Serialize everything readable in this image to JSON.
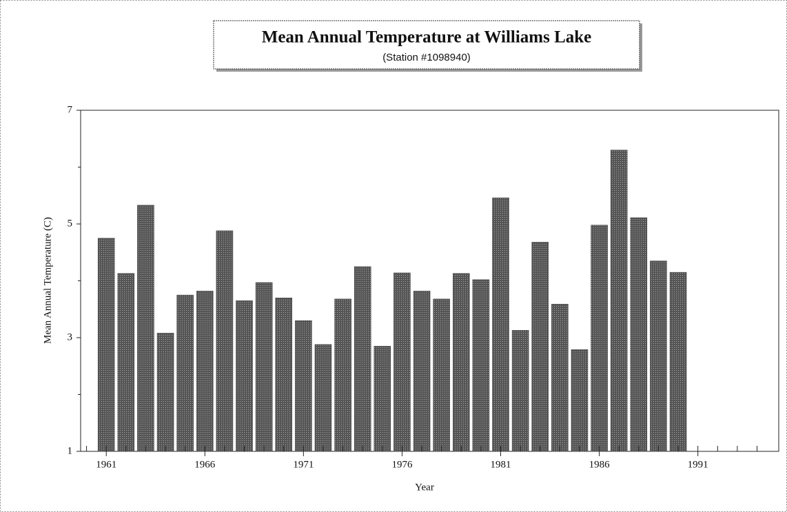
{
  "chart_data": {
    "type": "bar",
    "title": "Mean Annual Temperature at Williams Lake",
    "subtitle": "(Station #1098940)",
    "x_label": "Year",
    "y_label": "Mean Annual Temperature (C)",
    "x": [
      1961,
      1962,
      1963,
      1964,
      1965,
      1966,
      1967,
      1968,
      1969,
      1970,
      1971,
      1972,
      1973,
      1974,
      1975,
      1976,
      1977,
      1978,
      1979,
      1980,
      1981,
      1982,
      1983,
      1984,
      1985,
      1986,
      1987,
      1988,
      1989,
      1990
    ],
    "values": [
      4.75,
      4.13,
      5.33,
      3.08,
      3.75,
      3.82,
      4.88,
      3.65,
      3.97,
      3.7,
      3.3,
      2.88,
      3.68,
      4.25,
      2.85,
      4.14,
      3.82,
      3.68,
      4.13,
      4.02,
      5.46,
      3.13,
      4.68,
      3.59,
      2.79,
      4.98,
      6.3,
      5.11,
      4.35,
      4.15
    ],
    "color": "#3a3a3a",
    "xlim": [
      1959.7,
      1995.1
    ],
    "xticks": [
      1961,
      1966,
      1971,
      1976,
      1981,
      1986,
      1991
    ],
    "xminor_ticks": [
      1960,
      1961,
      1962,
      1963,
      1964,
      1965,
      1966,
      1967,
      1968,
      1969,
      1970,
      1971,
      1972,
      1973,
      1974,
      1975,
      1976,
      1977,
      1978,
      1979,
      1980,
      1981,
      1982,
      1983,
      1984,
      1985,
      1986,
      1987,
      1988,
      1989,
      1990,
      1991,
      1992,
      1993,
      1994
    ],
    "ylim": [
      1,
      7
    ],
    "yticks": [
      1,
      3,
      5,
      7
    ],
    "yminor_ticks": [
      2,
      4,
      6
    ],
    "grid": false
  }
}
